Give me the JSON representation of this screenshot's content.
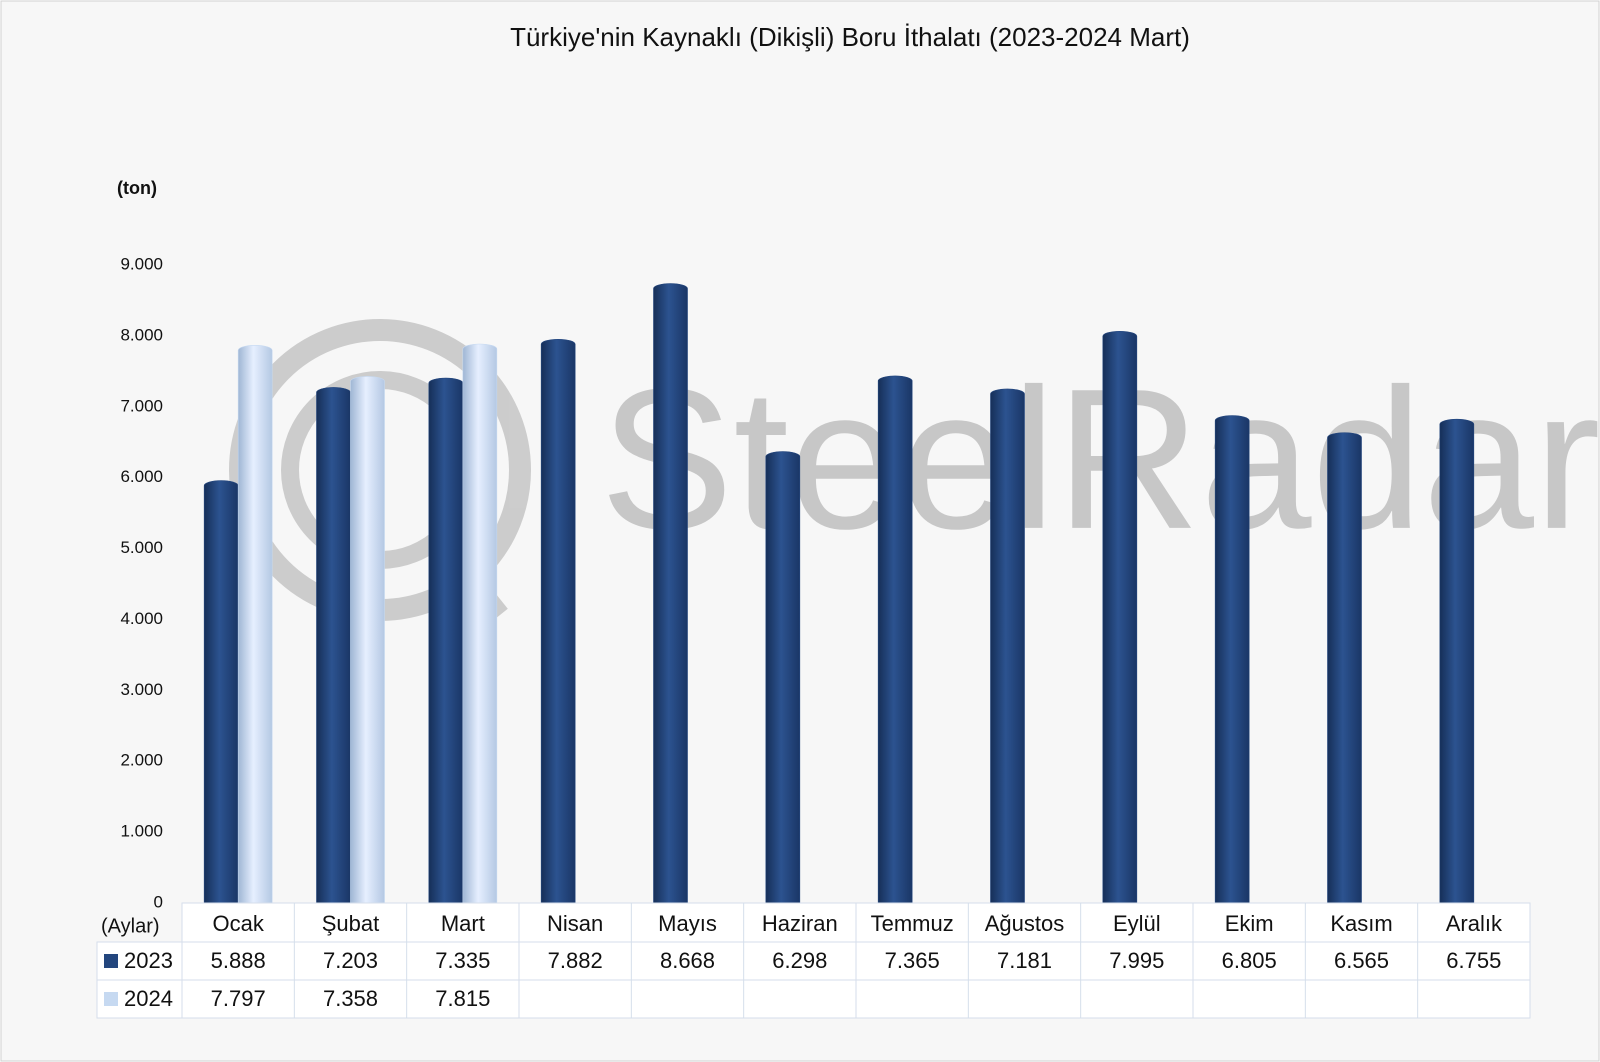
{
  "chart_data": {
    "type": "bar",
    "title": "Türkiye'nin Kaynaklı (Dikişli) Boru İthalatı (2023-2024 Mart)",
    "y_label": "(ton)",
    "x_label": "(Aylar)",
    "watermark": "SteelRadar",
    "categories": [
      "Ocak",
      "Şubat",
      "Mart",
      "Nisan",
      "Mayıs",
      "Haziran",
      "Temmuz",
      "Ağustos",
      "Eylül",
      "Ekim",
      "Kasım",
      "Aralık"
    ],
    "series": [
      {
        "name": "2023",
        "color": "#23467e",
        "values": [
          5888,
          7203,
          7335,
          7882,
          8668,
          6298,
          7365,
          7181,
          7995,
          6805,
          6565,
          6755
        ],
        "value_labels": [
          "5.888",
          "7.203",
          "7.335",
          "7.882",
          "8.668",
          "6.298",
          "7.365",
          "7.181",
          "7.995",
          "6.805",
          "6.565",
          "6.755"
        ]
      },
      {
        "name": "2024",
        "color": "#c6d9f1",
        "values": [
          7797,
          7358,
          7815,
          null,
          null,
          null,
          null,
          null,
          null,
          null,
          null,
          null
        ],
        "value_labels": [
          "7.797",
          "7.358",
          "7.815",
          null,
          null,
          null,
          null,
          null,
          null,
          null,
          null,
          null
        ]
      }
    ],
    "ylim": [
      0,
      9000
    ],
    "yticks": [
      0,
      {
        "value": 1000,
        "label": "1.000"
      },
      {
        "value": 2000,
        "label": "2.000"
      },
      {
        "value": 3000,
        "label": "3.000"
      },
      {
        "value": 4000,
        "label": "4.000"
      },
      {
        "value": 5000,
        "label": "5.000"
      },
      {
        "value": 6000,
        "label": "6.000"
      },
      {
        "value": 7000,
        "label": "7.000"
      },
      {
        "value": 8000,
        "label": "8.000"
      },
      {
        "value": 9000,
        "label": "9.000"
      }
    ],
    "grid": false
  }
}
